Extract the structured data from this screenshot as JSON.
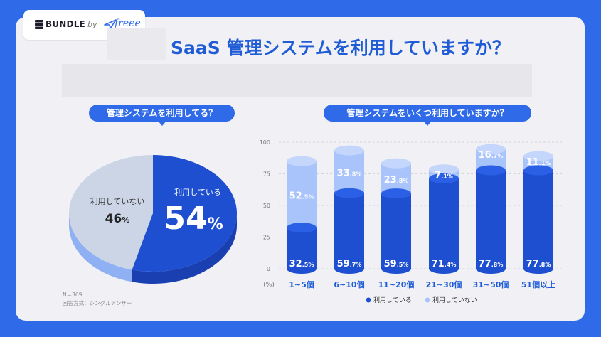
{
  "logo": {
    "brand": "BUNDLE",
    "by": "by",
    "partner": "freee"
  },
  "title": "SaaS 管理システムを利用していますか？",
  "colors": {
    "primary": "#2f6ae8",
    "dark_blue": "#1f4fd1",
    "light_blue": "#a9c4fb",
    "pale": "#c9d3e6"
  },
  "pie_panel": {
    "question": "管理システムを利用してる？",
    "note_n": "N＝369",
    "note_method": "回答方式：シングルアンサー"
  },
  "bar_panel": {
    "question": "管理システムをいくつ利用していますか？"
  },
  "chart_data": [
    {
      "type": "pie",
      "slices": [
        {
          "label": "利用している",
          "value": 54,
          "display": "54",
          "unit": "%"
        },
        {
          "label": "利用していない",
          "value": 46,
          "display": "46",
          "unit": "%"
        }
      ]
    },
    {
      "type": "bar",
      "stacked": true,
      "categories": [
        "1~5個",
        "6~10個",
        "11~20個",
        "21~30個",
        "31~50個",
        "51個以上"
      ],
      "series": [
        {
          "name": "利用している",
          "values": [
            32.5,
            59.7,
            59.5,
            71.4,
            77.8,
            77.8
          ],
          "int": [
            "32",
            "59",
            "59",
            "71",
            "77",
            "77"
          ],
          "dec": [
            ".5%",
            ".7%",
            ".5%",
            ".4%",
            ".8%",
            ".8%"
          ],
          "color": "#1f4fd1"
        },
        {
          "name": "利用していない",
          "values": [
            52.5,
            33.8,
            23.8,
            7.1,
            16.7,
            11.1
          ],
          "int": [
            "52",
            "33",
            "23",
            "7",
            "16",
            "11"
          ],
          "dec": [
            ".5%",
            ".8%",
            ".8%",
            ".1%",
            ".7%",
            ".1%"
          ],
          "color": "#a9c4fb"
        }
      ],
      "y_ticks": [
        "0",
        "25",
        "50",
        "75",
        "100"
      ],
      "ylim": [
        0,
        100
      ],
      "y_unit_label": "(%)",
      "legend_position": "bottom"
    }
  ]
}
